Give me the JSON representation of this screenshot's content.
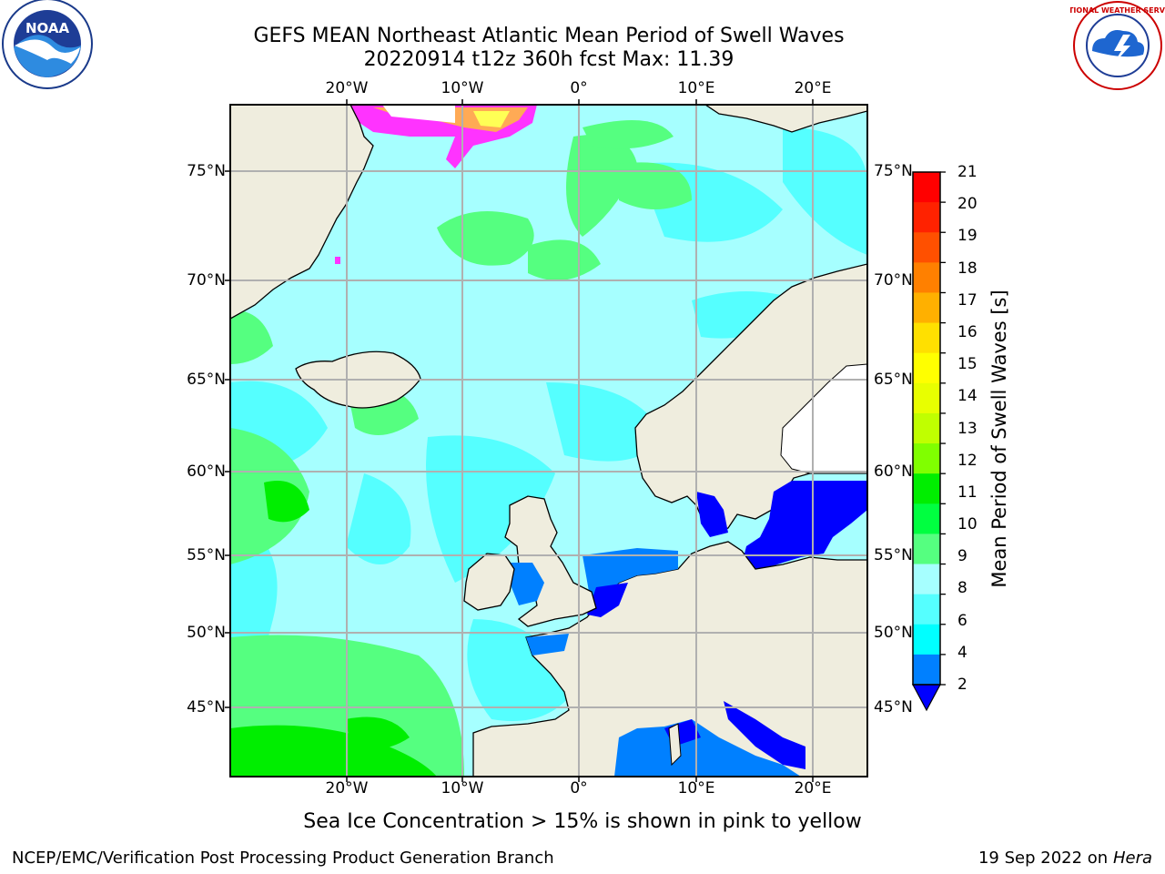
{
  "title": {
    "line1": "GEFS MEAN Northeast Atlantic Mean Period of Swell Waves",
    "line2": "20220914 t12z 360h fcst   Max: 11.39"
  },
  "map": {
    "lon_labels": [
      "20°W",
      "10°W",
      "0°",
      "10°E",
      "20°E"
    ],
    "lat_labels": [
      "75°N",
      "70°N",
      "65°N",
      "60°N",
      "55°N",
      "50°N",
      "45°N"
    ],
    "colors": {
      "land": "#efedde",
      "ocean_base": "#a6ffff",
      "ocean_cyan": "#55ffff",
      "green_light": "#55ff80",
      "green": "#00ee00",
      "blue_mid": "#0080ff",
      "blue_dark": "#0000ff",
      "ice_pink": "#ff33ff",
      "ice_yellow": "#ffff55",
      "grid": "#b0b0b0"
    }
  },
  "colorbar": {
    "label": "Mean Period of Swell Waves [s]",
    "ticks": [
      "21",
      "20",
      "19",
      "18",
      "17",
      "16",
      "15",
      "14",
      "13",
      "12",
      "11",
      "10",
      "9",
      "8",
      "6",
      "4",
      "2"
    ],
    "colors": [
      "#ff0000",
      "#ff2200",
      "#ff5000",
      "#ff8000",
      "#ffb000",
      "#ffe000",
      "#ffff00",
      "#e8ff00",
      "#c0ff00",
      "#80ff00",
      "#00ee00",
      "#00ff40",
      "#55ff80",
      "#a6ffff",
      "#55ffff",
      "#00ffff",
      "#0080ff"
    ],
    "under_color": "#0000ff"
  },
  "note": "Sea Ice Concentration > 15% is shown in pink to yellow",
  "footer": {
    "left": "NCEP/EMC/Verification Post Processing Product Generation Branch",
    "date": "19 Sep 2022 on",
    "machine": "Hera"
  },
  "logos": {
    "left": "NOAA",
    "right_text": "NATIONAL WEATHER SERVICE"
  }
}
